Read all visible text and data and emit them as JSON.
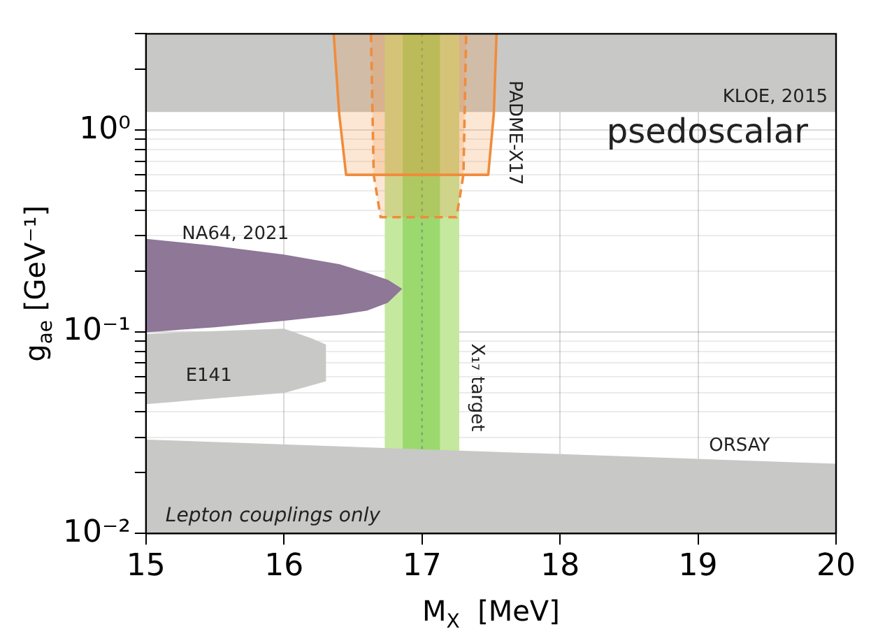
{
  "chart_data": {
    "type": "area",
    "xlabel": "M$_{X}$  [MeV]",
    "ylabel": "g$_{ae}$ [GeV⁻¹]",
    "log": "y",
    "grid": true,
    "xlim": [
      15,
      20
    ],
    "xticks": [
      15,
      16,
      17,
      18,
      19,
      20
    ],
    "ylim": [
      0.01,
      3
    ],
    "yticks": [
      {
        "value": 0.01,
        "label": "10⁻²"
      },
      {
        "value": 0.02,
        "label": null
      },
      {
        "value": 0.03,
        "label": null
      },
      {
        "value": 0.04,
        "label": null
      },
      {
        "value": 0.05,
        "label": null
      },
      {
        "value": 0.06,
        "label": null
      },
      {
        "value": 0.07,
        "label": null
      },
      {
        "value": 0.08,
        "label": null
      },
      {
        "value": 0.09,
        "label": null
      },
      {
        "value": 0.1,
        "label": "10⁻¹"
      },
      {
        "value": 0.2,
        "label": null
      },
      {
        "value": 0.3,
        "label": null
      },
      {
        "value": 0.4,
        "label": null
      },
      {
        "value": 0.5,
        "label": null
      },
      {
        "value": 0.6,
        "label": null
      },
      {
        "value": 0.7,
        "label": null
      },
      {
        "value": 0.8,
        "label": null
      },
      {
        "value": 0.9,
        "label": null
      },
      {
        "value": 1,
        "label": "10⁰"
      },
      {
        "value": 2,
        "label": null
      },
      {
        "value": 3,
        "label": null
      }
    ],
    "bands": [
      {
        "axis": "y",
        "from": 1.23,
        "to": 3,
        "label": "KLOE, 2015",
        "color": "#c8c9c6"
      },
      {
        "axis": "x",
        "from": 16.73,
        "to": 17.27,
        "label": "X₁₇ target",
        "color": "#c5e89f"
      },
      {
        "axis": "x",
        "from": 16.86,
        "to": 17.13,
        "color": "#9bd96e"
      }
    ],
    "ref_lines": [
      {
        "axis": "x",
        "value": 17,
        "color": "#7a9a6a",
        "line_style": "dotted"
      }
    ],
    "series": [
      {
        "type": "area",
        "name": "ORSAY",
        "color": "#c8c9c6",
        "x": [
          15,
          20,
          20,
          15
        ],
        "values": [
          0.029,
          0.022,
          0.01,
          0.01
        ]
      },
      {
        "type": "area",
        "name": "E141",
        "color": "#c8c9c6",
        "x": [
          15,
          15.5,
          16,
          16.2,
          16.3,
          16.3,
          16,
          15.5,
          15
        ],
        "values": [
          0.097,
          0.1,
          0.103,
          0.092,
          0.086,
          0.057,
          0.05,
          0.047,
          0.044
        ]
      },
      {
        "type": "area",
        "name": "NA64, 2021",
        "color": "#8e7797",
        "x": [
          15,
          15.5,
          16,
          16.4,
          16.6,
          16.75,
          16.85,
          16.75,
          16.6,
          16.4,
          16,
          15.5,
          15
        ],
        "values": [
          0.287,
          0.265,
          0.24,
          0.215,
          0.195,
          0.18,
          0.163,
          0.14,
          0.128,
          0.122,
          0.114,
          0.106,
          0.1
        ]
      },
      {
        "type": "area",
        "name": "PADME-X17",
        "color": "#f08c3c",
        "line_style": "solid",
        "x": [
          16.36,
          16.4,
          16.45,
          17.48,
          17.52,
          17.54
        ],
        "values": [
          3,
          1.2,
          0.6,
          0.6,
          1.2,
          3
        ]
      },
      {
        "type": "area",
        "color": "#f08c3c",
        "line_style": "dashed",
        "x": [
          16.63,
          16.65,
          16.7,
          17.25,
          17.3,
          17.32
        ],
        "values": [
          3,
          0.6,
          0.37,
          0.37,
          0.6,
          3
        ]
      }
    ],
    "annotations": [
      "psedoscalar",
      "Lepton couplings only"
    ]
  }
}
